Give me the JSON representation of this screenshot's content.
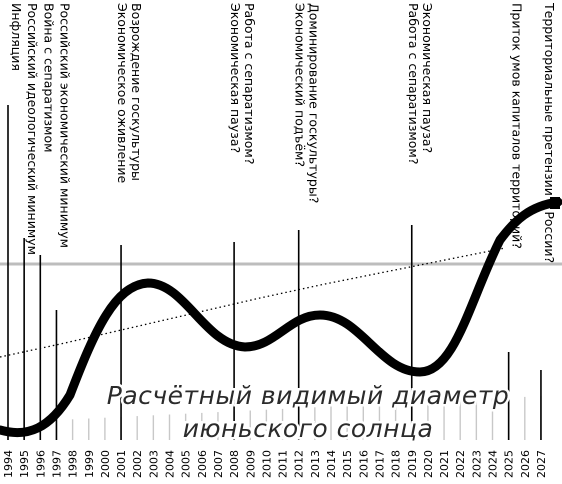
{
  "title": {
    "line1": "Расчётный видимый диаметр",
    "line2": "июньского солнца"
  },
  "years": [
    "1994",
    "1995",
    "1996",
    "1997",
    "1998",
    "1999",
    "2000",
    "2001",
    "2002",
    "2003",
    "2004",
    "2005",
    "2006",
    "2007",
    "2008",
    "2009",
    "2010",
    "2011",
    "2012",
    "2013",
    "2014",
    "2015",
    "2016",
    "2017",
    "2018",
    "2019",
    "2020",
    "2021",
    "2022",
    "2023",
    "2024",
    "2025",
    "2026",
    "2027"
  ],
  "annotations": [
    {
      "year": 1994,
      "lines": [
        "Инфляция"
      ]
    },
    {
      "year": 1995,
      "lines": [
        "Российский идеологический минимум"
      ]
    },
    {
      "year": 1996,
      "lines": [
        "Война с сепаратизмом"
      ]
    },
    {
      "year": 1997,
      "lines": [
        "Российский экономический минимум"
      ]
    },
    {
      "year": 2001,
      "lines": [
        "Экономическое оживление",
        "Возрождение госкультуры"
      ]
    },
    {
      "year": 2008,
      "lines": [
        "Экономическая пауза?",
        "Работа с сепаратизмом?"
      ]
    },
    {
      "year": 2012,
      "lines": [
        "Экономический подъём?",
        "Доминирование госкультуры?"
      ]
    },
    {
      "year": 2019,
      "lines": [
        "Работа с сепаратизмом?",
        "Экономическая пауза?"
      ]
    },
    {
      "year": 2025,
      "lines": [
        "Приток умов капиталов территорий?"
      ]
    },
    {
      "year": 2027,
      "lines": [
        "Территориальные претензии к России?"
      ]
    }
  ]
}
